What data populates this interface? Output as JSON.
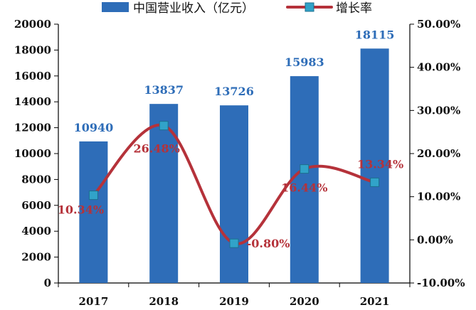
{
  "chart_data": {
    "type": "bar+line",
    "categories": [
      "2017",
      "2018",
      "2019",
      "2020",
      "2021"
    ],
    "series": [
      {
        "name": "中国营业收入（亿元）",
        "type": "bar",
        "axis": "left",
        "values": [
          10940,
          13837,
          13726,
          15983,
          18115
        ],
        "labels": [
          "10940",
          "13837",
          "13726",
          "15983",
          "18115"
        ]
      },
      {
        "name": "增长率",
        "type": "line",
        "axis": "right",
        "values": [
          10.34,
          26.48,
          -0.8,
          16.44,
          13.34
        ],
        "labels": [
          "10.34%",
          "26.48%",
          "-0.80%",
          "16.44%",
          "13.34%"
        ]
      }
    ],
    "y_left": {
      "range": [
        0,
        20000
      ],
      "ticks": [
        0,
        2000,
        4000,
        6000,
        8000,
        10000,
        12000,
        14000,
        16000,
        18000,
        20000
      ],
      "tick_labels": [
        "0",
        "2000",
        "4000",
        "6000",
        "8000",
        "10000",
        "12000",
        "14000",
        "16000",
        "18000",
        "20000"
      ]
    },
    "y_right": {
      "range": [
        -10,
        50
      ],
      "ticks": [
        -10,
        0,
        10,
        20,
        30,
        40,
        50
      ],
      "tick_labels": [
        "-10.00%",
        "0.00%",
        "10.00%",
        "20.00%",
        "30.00%",
        "40.00%",
        "50.00%"
      ]
    },
    "grid": false,
    "legend": "top-center",
    "colors": {
      "bar": "#2e6db8",
      "bar_label": "#2e6db8",
      "line": "#b5323a",
      "line_label": "#b5323a",
      "marker": "#31a3c9",
      "axis": "#000000"
    }
  }
}
